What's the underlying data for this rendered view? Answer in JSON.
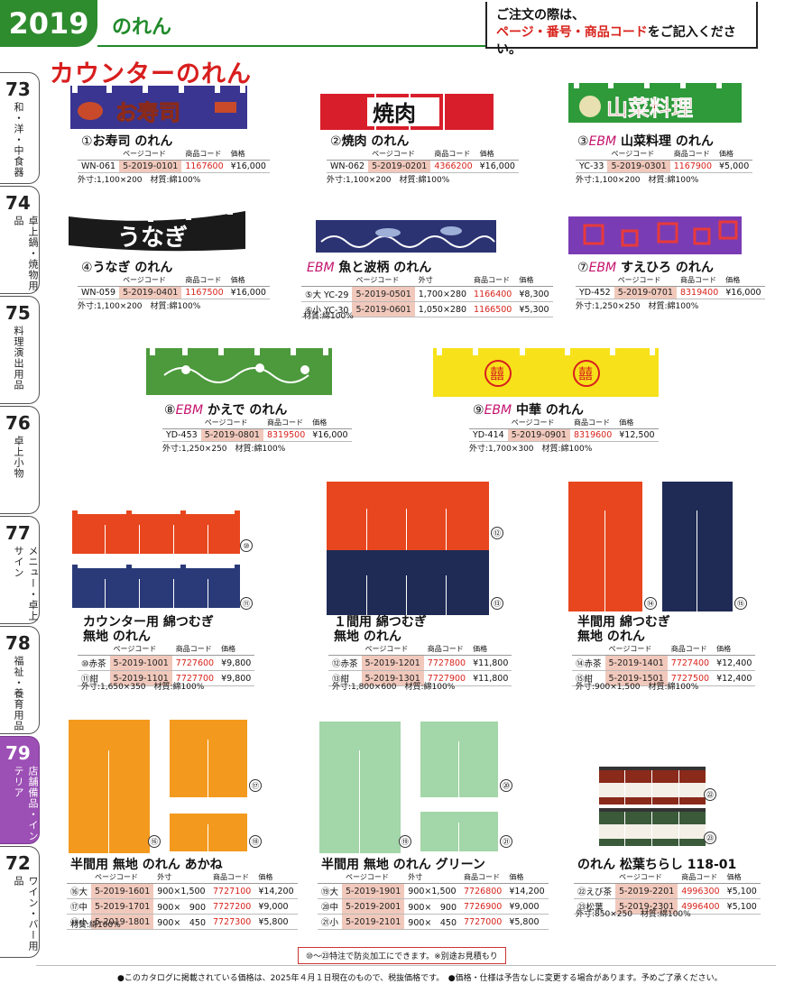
{
  "header": {
    "year": "2019",
    "section": "のれん",
    "order_prefix": "ご注文の際は、",
    "order_emph": "ページ・番号・商品コード",
    "order_suffix": "をご記入ください。"
  },
  "page_heading": "カウンターのれん",
  "tabs": [
    {
      "num": "73",
      "label": "和・洋・中食器"
    },
    {
      "num": "74",
      "label": "卓上鍋・焼物用品"
    },
    {
      "num": "75",
      "label": "料理演出用品"
    },
    {
      "num": "76",
      "label": "卓上小物"
    },
    {
      "num": "77",
      "label": "メニュー・卓上サイン"
    },
    {
      "num": "78",
      "label": "福祉・養育用品"
    },
    {
      "num": "79",
      "label": "店舗備品・インテリア"
    },
    {
      "num": "72",
      "label": "ワイン・バー用品"
    }
  ],
  "col_headers": {
    "page": "ページコード",
    "code": "商品コード",
    "price": "価格",
    "size": "外寸"
  },
  "products": {
    "p1": {
      "no": "①",
      "ebm": "",
      "name": "お寿司 のれん",
      "banner": "お寿司",
      "row": {
        "model": "WN-061",
        "page": "5-2019-0101",
        "code": "1167600",
        "price": "¥16,000"
      },
      "note": "外寸:1,100×200　材質:綿100%"
    },
    "p2": {
      "no": "②",
      "ebm": "",
      "name": "焼肉 のれん",
      "banner": "焼肉",
      "row": {
        "model": "WN-062",
        "page": "5-2019-0201",
        "code": "4366200",
        "price": "¥16,000"
      },
      "note": "外寸:1,100×200　材質:綿100%"
    },
    "p3": {
      "no": "③",
      "ebm": "EBM",
      "name": "山菜料理 のれん",
      "banner": "山菜料理",
      "row": {
        "model": "YC-33",
        "page": "5-2019-0301",
        "code": "1167900",
        "price": "¥5,000"
      },
      "note": "外寸:1,100×200　材質:綿100%"
    },
    "p4": {
      "no": "④",
      "ebm": "",
      "name": "うなぎ のれん",
      "banner": "うなぎ",
      "row": {
        "model": "WN-059",
        "page": "5-2019-0401",
        "code": "1167500",
        "price": "¥16,000"
      },
      "note": "外寸:1,100×200　材質:綿100%"
    },
    "p5": {
      "no": "",
      "ebm": "EBM",
      "name": "魚と波柄 のれん",
      "rows": [
        {
          "model": "⑤大 YC-29",
          "page": "5-2019-0501",
          "size": "1,700×280",
          "code": "1166400",
          "price": "¥8,300"
        },
        {
          "model": "⑥小 YC-30",
          "page": "5-2019-0601",
          "size": "1,050×280",
          "code": "1166500",
          "price": "¥5,300"
        }
      ],
      "note": "材質:綿100%"
    },
    "p7": {
      "no": "⑦",
      "ebm": "EBM",
      "name": "すえひろ のれん",
      "row": {
        "model": "YD-452",
        "page": "5-2019-0701",
        "code": "8319400",
        "price": "¥16,000"
      },
      "note": "外寸:1,250×250　材質:綿100%"
    },
    "p8": {
      "no": "⑧",
      "ebm": "EBM",
      "name": "かえで のれん",
      "row": {
        "model": "YD-453",
        "page": "5-2019-0801",
        "code": "8319500",
        "price": "¥16,000"
      },
      "note": "外寸:1,250×250　材質:綿100%"
    },
    "p9": {
      "no": "⑨",
      "ebm": "EBM",
      "name": "中華 のれん",
      "banner": "囍",
      "row": {
        "model": "YD-414",
        "page": "5-2019-0901",
        "code": "8319600",
        "price": "¥12,500"
      },
      "note": "外寸:1,700×300　材質:綿100%"
    },
    "p10": {
      "name1": "カウンター用 綿つむぎ",
      "name2": "無地 のれん",
      "rows": [
        {
          "model": "⑩赤茶",
          "page": "5-2019-1001",
          "code": "7727600",
          "price": "¥9,800"
        },
        {
          "model": "⑪紺",
          "page": "5-2019-1101",
          "code": "7727700",
          "price": "¥9,800"
        }
      ],
      "note": "外寸:1,650×350　材質:綿100%"
    },
    "p12": {
      "name1": "１間用 綿つむぎ",
      "name2": "無地 のれん",
      "rows": [
        {
          "model": "⑫赤茶",
          "page": "5-2019-1201",
          "code": "7727800",
          "price": "¥11,800"
        },
        {
          "model": "⑬紺",
          "page": "5-2019-1301",
          "code": "7727900",
          "price": "¥11,800"
        }
      ],
      "note": "外寸:1,800×600　材質:綿100%"
    },
    "p14": {
      "name1": "半間用 綿つむぎ",
      "name2": "無地 のれん",
      "rows": [
        {
          "model": "⑭赤茶",
          "page": "5-2019-1401",
          "code": "7727400",
          "price": "¥12,400"
        },
        {
          "model": "⑮紺",
          "page": "5-2019-1501",
          "code": "7727500",
          "price": "¥12,400"
        }
      ],
      "note": "外寸:900×1,500　材質:綿100%"
    },
    "p16": {
      "name": "半間用 無地 のれん あかね",
      "rows": [
        {
          "model": "⑯大",
          "page": "5-2019-1601",
          "size": "900×1,500",
          "code": "7727100",
          "price": "¥14,200"
        },
        {
          "model": "⑰中",
          "page": "5-2019-1701",
          "size": "900×　900",
          "code": "7727200",
          "price": "¥9,000"
        },
        {
          "model": "⑱小",
          "page": "5-2019-1801",
          "size": "900×　450",
          "code": "7727300",
          "price": "¥5,800"
        }
      ],
      "note": "材質:綿100%"
    },
    "p19": {
      "name": "半間用 無地 のれん グリーン",
      "rows": [
        {
          "model": "⑲大",
          "page": "5-2019-1901",
          "size": "900×1,500",
          "code": "7726800",
          "price": "¥14,200"
        },
        {
          "model": "⑳中",
          "page": "5-2019-2001",
          "size": "900×　900",
          "code": "7726900",
          "price": "¥9,000"
        },
        {
          "model": "㉑小",
          "page": "5-2019-2101",
          "size": "900×　450",
          "code": "7727000",
          "price": "¥5,800"
        }
      ],
      "note": ""
    },
    "p22": {
      "name": "のれん 松葉ちらし 118-01",
      "rows": [
        {
          "model": "㉒えび茶",
          "page": "5-2019-2201",
          "code": "4996300",
          "price": "¥5,100"
        },
        {
          "model": "㉓松葉",
          "page": "5-2019-2301",
          "code": "4996400",
          "price": "¥5,100"
        }
      ],
      "note": "外寸:850×250　材質:綿100%"
    }
  },
  "badges": [
    "⑩",
    "⑪",
    "⑫",
    "⑬",
    "⑭",
    "⑮",
    "⑯",
    "⑰",
    "⑱",
    "⑲",
    "⑳",
    "㉑",
    "㉒",
    "㉓"
  ],
  "flame_note": "⑩〜㉓特注で防炎加工にできます。※別途お見積もり",
  "footer": "●このカタログに掲載されている価格は、2025年４月１日現在のもので、税抜価格です。　●価格・仕様は予告なしに変更する場合があります。予めご了承ください。",
  "colors": {
    "green": "#2e8b2e",
    "red": "#d81e1e",
    "purple": "#9c4fb4",
    "navy": "#1f2a55",
    "rust": "#e8461e",
    "orange": "#f39a1e",
    "mint": "#a3d6a8"
  }
}
